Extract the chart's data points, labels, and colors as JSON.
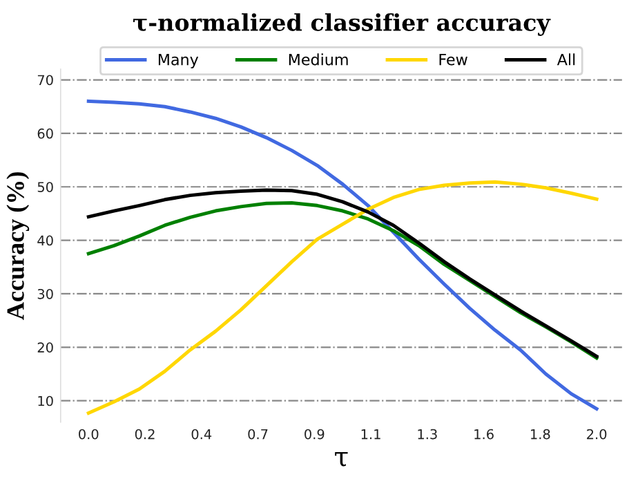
{
  "chart_data": {
    "type": "line",
    "title": "τ-normalized classifier accuracy",
    "xlabel": "τ",
    "ylabel": "Accuracy (%)",
    "x": [
      0.0,
      0.1,
      0.2,
      0.3,
      0.4,
      0.5,
      0.6,
      0.7,
      0.8,
      0.9,
      1.0,
      1.1,
      1.2,
      1.3,
      1.4,
      1.5,
      1.6,
      1.7,
      1.8,
      1.9,
      2.0
    ],
    "series": [
      {
        "name": "Many",
        "color": "#4169e1",
        "values": [
          66.0,
          65.8,
          65.5,
          65.0,
          64.0,
          62.8,
          61.2,
          59.2,
          56.8,
          54.0,
          50.5,
          46.5,
          41.5,
          36.5,
          31.8,
          27.3,
          23.2,
          19.5,
          15.0,
          11.3,
          8.5
        ]
      },
      {
        "name": "Medium",
        "color": "#008000",
        "values": [
          37.5,
          39.0,
          40.8,
          42.8,
          44.3,
          45.5,
          46.3,
          46.9,
          47.0,
          46.5,
          45.5,
          44.0,
          41.8,
          39.0,
          35.5,
          32.5,
          29.5,
          26.5,
          23.8,
          21.0,
          18.0
        ]
      },
      {
        "name": "Few",
        "color": "#ffd700",
        "values": [
          7.7,
          9.8,
          12.2,
          15.5,
          19.5,
          23.0,
          27.0,
          31.5,
          36.0,
          40.2,
          43.0,
          45.8,
          48.0,
          49.5,
          50.3,
          50.7,
          50.9,
          50.5,
          49.8,
          48.8,
          47.7
        ]
      },
      {
        "name": "All",
        "color": "#000000",
        "values": [
          44.4,
          45.5,
          46.5,
          47.6,
          48.4,
          48.9,
          49.2,
          49.4,
          49.3,
          48.6,
          47.2,
          45.3,
          42.8,
          39.5,
          36.0,
          32.8,
          29.8,
          26.8,
          24.0,
          21.2,
          18.3
        ]
      }
    ],
    "xlim": [
      -0.11,
      2.1
    ],
    "ylim": [
      6,
      72
    ],
    "xticks": [
      {
        "value": 0.0,
        "label": "0.0"
      },
      {
        "value": 0.2222,
        "label": "0.2"
      },
      {
        "value": 0.4444,
        "label": "0.4"
      },
      {
        "value": 0.6667,
        "label": "0.7"
      },
      {
        "value": 0.8889,
        "label": "0.9"
      },
      {
        "value": 1.1111,
        "label": "1.1"
      },
      {
        "value": 1.3333,
        "label": "1.3"
      },
      {
        "value": 1.5556,
        "label": "1.6"
      },
      {
        "value": 1.7778,
        "label": "1.8"
      },
      {
        "value": 2.0,
        "label": "2.0"
      }
    ],
    "yticks": [
      10,
      20,
      30,
      40,
      50,
      60,
      70
    ],
    "grid": "y",
    "legend": "top",
    "line_style": "solid",
    "marker": "none"
  }
}
